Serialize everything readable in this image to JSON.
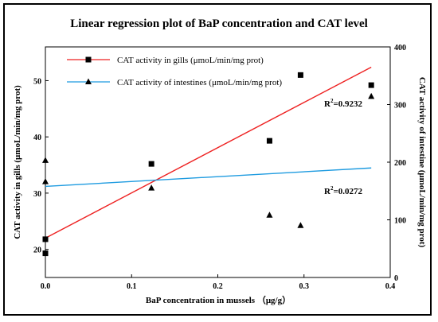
{
  "chart_data": {
    "type": "scatter",
    "title": "Linear regression plot of BaP concentration and CAT level",
    "xlabel": "BaP concentration in mussels （μg/g）",
    "ylabel_left": "CAT activity in gills (μmoL/min/mg prot)",
    "ylabel_right": "CAT activity of intestine (μmoL/min/mg prot)",
    "xlim": [
      0,
      0.4
    ],
    "ylim_left": [
      15,
      56
    ],
    "ylim_right": [
      0,
      400
    ],
    "x_ticks": [
      "0.0",
      "0.1",
      "0.2",
      "0.3",
      "0.4"
    ],
    "x_tick_values": [
      0,
      0.1,
      0.2,
      0.3,
      0.4
    ],
    "y_left_ticks": [
      "20",
      "30",
      "40",
      "50"
    ],
    "y_left_tick_values": [
      20,
      30,
      40,
      50
    ],
    "y_right_ticks": [
      "0",
      "100",
      "200",
      "300",
      "400"
    ],
    "y_right_tick_values": [
      0,
      100,
      200,
      300,
      400
    ],
    "legend_position": "top-left",
    "series": [
      {
        "name": "CAT activity in gills (μmoL/min/mg prot)",
        "axis": "left",
        "marker": "square",
        "line_color": "#ee2222",
        "x": [
          0,
          0,
          0.123,
          0.26,
          0.296,
          0.378
        ],
        "y": [
          19.3,
          21.8,
          35.2,
          39.3,
          51.0,
          49.2
        ],
        "fit": {
          "x": [
            0,
            0.378
          ],
          "y": [
            22.0,
            52.4
          ]
        },
        "r2_label": "R",
        "r2_sup": "2",
        "r2_value": "=0.9232"
      },
      {
        "name": "CAT activity of intestines  (μmoL/min/mg prot)",
        "axis": "right",
        "marker": "triangle",
        "line_color": "#1e9be0",
        "x": [
          0,
          0,
          0.123,
          0.26,
          0.296,
          0.378
        ],
        "y": [
          203,
          166,
          155,
          108,
          90,
          314
        ],
        "fit": {
          "x": [
            0,
            0.378
          ],
          "y": [
            158,
            190
          ]
        },
        "r2_label": "R",
        "r2_sup": "2",
        "r2_value": "=0.0272"
      }
    ]
  }
}
